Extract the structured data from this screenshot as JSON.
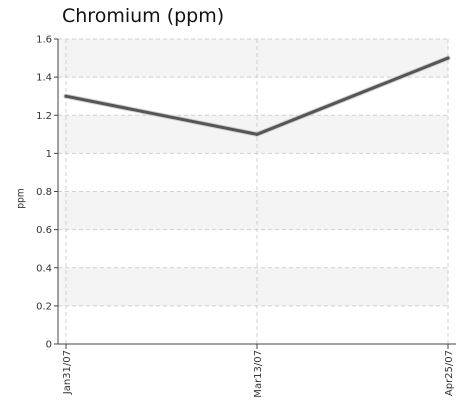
{
  "chart_data": {
    "type": "line",
    "title": "Chromium (ppm)",
    "xlabel": "",
    "ylabel": "ppm",
    "categories": [
      "Jan31/07",
      "Mar13/07",
      "Apr25/07"
    ],
    "series": [
      {
        "values": [
          1.3,
          1.1,
          1.5
        ]
      }
    ],
    "ylim": [
      0,
      1.6
    ],
    "yticks": [
      "0",
      "0.2",
      "0.4",
      "0.6",
      "0.8",
      "1",
      "1.2",
      "1.4",
      "1.6"
    ],
    "grid": true,
    "line_color": "#555555",
    "band_color": "#f4f4f4",
    "grid_color": "#d0d0d0"
  }
}
